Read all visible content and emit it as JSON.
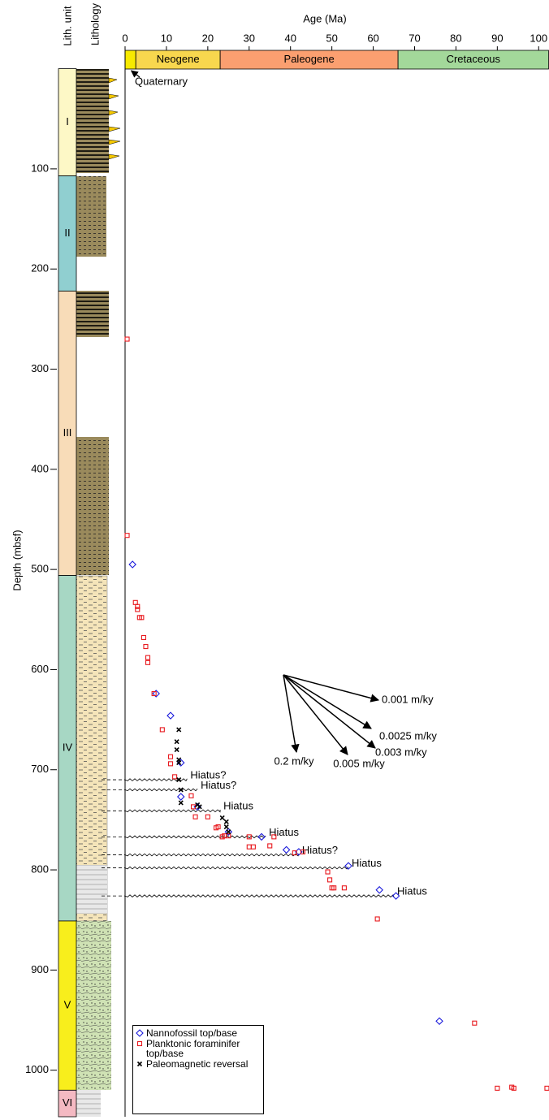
{
  "chart_data": {
    "type": "scatter",
    "x_label": "Age (Ma)",
    "y_label": "Depth (mbsf)",
    "xlim": [
      0,
      102.5
    ],
    "ylim": [
      0,
      1046.5
    ],
    "y_reversed": true,
    "xticks": [
      0,
      10,
      20,
      30,
      40,
      50,
      60,
      70,
      80,
      90,
      100
    ],
    "yticks": [
      100,
      200,
      300,
      400,
      500,
      600,
      700,
      800,
      900,
      1000
    ],
    "series": [
      {
        "name": "Nannofossil top/base",
        "color": "#1a1adb",
        "marker": "diamond",
        "x": [
          1.8,
          7.5,
          11,
          13.5,
          13.5,
          17.5,
          25,
          33,
          39,
          42,
          54,
          61.5,
          65.5,
          76
        ],
        "values": [
          495,
          624,
          646,
          693,
          727,
          737,
          762,
          767,
          780,
          782,
          796,
          820,
          826,
          951
        ]
      },
      {
        "name": "Planktonic foraminifer top/base",
        "color": "#e8191e",
        "marker": "square",
        "x": [
          0.5,
          0.5,
          2.5,
          3,
          3,
          3.5,
          4,
          4.5,
          5,
          5.5,
          5.5,
          7,
          9,
          11,
          11,
          12,
          16,
          16.5,
          17,
          20,
          22,
          22.5,
          23.5,
          24,
          25,
          30,
          30,
          31,
          35,
          36,
          41,
          43,
          49,
          49.5,
          50,
          50.5,
          53,
          61,
          84.5,
          90,
          93.5,
          94,
          102
        ],
        "values": [
          270,
          466,
          533,
          537,
          540,
          548,
          548,
          568,
          577,
          588,
          593,
          624,
          660,
          687,
          694,
          707,
          726,
          737,
          747,
          747,
          758,
          757,
          767,
          766,
          766,
          767,
          777,
          777,
          776,
          767,
          783,
          782,
          802,
          810,
          818,
          818,
          818,
          849,
          953,
          1018,
          1017,
          1018,
          1018
        ]
      },
      {
        "name": "Paleomagnetic reversal",
        "color": "#000000",
        "marker": "cross",
        "x": [
          13,
          12.5,
          12.5,
          13,
          13,
          13,
          13.5,
          13.5,
          17.5,
          18,
          23.5,
          24.5,
          24.5,
          25
        ],
        "values": [
          660,
          672,
          680,
          690,
          693,
          710,
          720,
          733,
          735,
          737,
          748,
          752,
          757,
          762
        ]
      }
    ],
    "epochs": [
      {
        "name": "Quaternary",
        "start": 0,
        "end": 2.6,
        "color": "#f7ea00"
      },
      {
        "name": "Neogene",
        "start": 2.6,
        "end": 23,
        "color": "#f8d74e"
      },
      {
        "name": "Paleogene",
        "start": 23,
        "end": 66,
        "color": "#fb9f70"
      },
      {
        "name": "Cretaceous",
        "start": 66,
        "end": 102.5,
        "color": "#a3d89a"
      }
    ],
    "lith_unit_title": "Lith. unit",
    "lithology_title": "Lithology",
    "lith_units": [
      {
        "name": "I",
        "top": 0,
        "bottom": 107,
        "color": "#fdf8c6"
      },
      {
        "name": "II",
        "top": 107,
        "bottom": 222,
        "color": "#90cfd0"
      },
      {
        "name": "III",
        "top": 222,
        "bottom": 506,
        "color": "#f8dcb8"
      },
      {
        "name": "IV",
        "top": 506,
        "bottom": 851,
        "color": "#a7d7c4"
      },
      {
        "name": "V",
        "top": 851,
        "bottom": 1020,
        "color": "#f8ee1c"
      },
      {
        "name": "VI",
        "top": 1020,
        "bottom": 1046.5,
        "color": "#f4b9c2"
      }
    ],
    "hiatuses": [
      {
        "label": "Hiatus?",
        "depth": 710,
        "age": 15
      },
      {
        "label": "Hiatus?",
        "depth": 720,
        "age": 17.5
      },
      {
        "label": "Hiatus",
        "depth": 741,
        "age": 23
      },
      {
        "label": "Hiatus",
        "depth": 767,
        "age": 34
      },
      {
        "label": "Hiatus?",
        "depth": 785,
        "age": 42
      },
      {
        "label": "Hiatus",
        "depth": 798,
        "age": 54
      },
      {
        "label": "Hiatus",
        "depth": 826,
        "age": 65
      }
    ],
    "rate_labels": [
      "0.001 m/ky",
      "0.0025 m/ky",
      "0.003 m/ky",
      "0.005 m/ky",
      "0.2 m/ky"
    ]
  }
}
